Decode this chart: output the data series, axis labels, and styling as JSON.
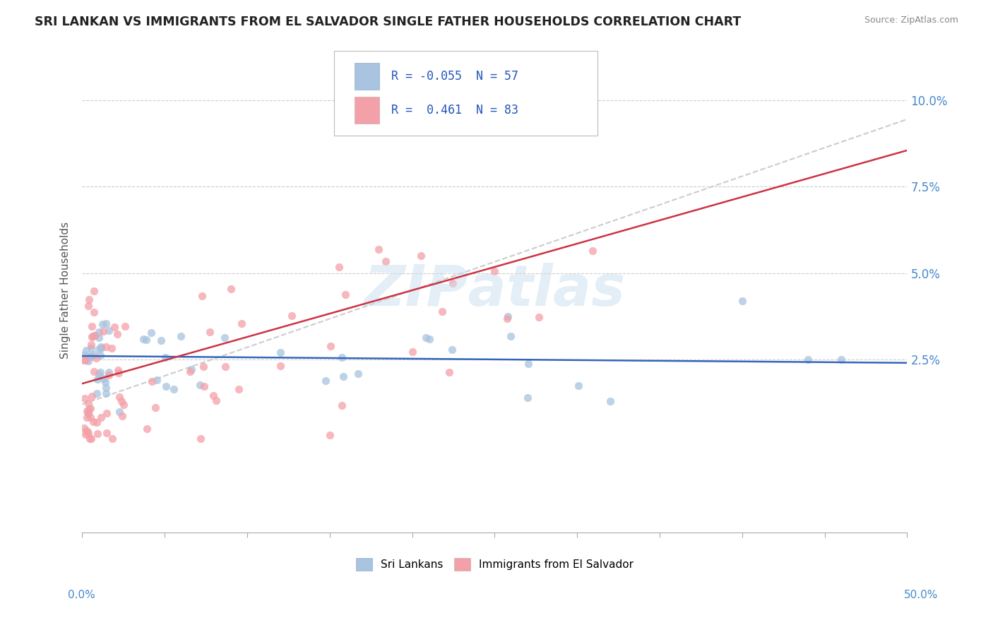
{
  "title": "SRI LANKAN VS IMMIGRANTS FROM EL SALVADOR SINGLE FATHER HOUSEHOLDS CORRELATION CHART",
  "source": "Source: ZipAtlas.com",
  "ylabel": "Single Father Households",
  "yticks": [
    "2.5%",
    "5.0%",
    "7.5%",
    "10.0%"
  ],
  "ytick_vals": [
    0.025,
    0.05,
    0.075,
    0.1
  ],
  "xlim": [
    0.0,
    0.5
  ],
  "ylim": [
    -0.025,
    0.115
  ],
  "legend_sri": "Sri Lankans",
  "legend_sal": "Immigrants from El Salvador",
  "R_sri": "-0.055",
  "N_sri": "57",
  "R_sal": "0.461",
  "N_sal": "83",
  "sri_color": "#a8c4e0",
  "sal_color": "#f4a0a8",
  "sri_line_color": "#3366bb",
  "sal_line_color": "#cc3344",
  "gray_line_color": "#cccccc",
  "background_color": "#ffffff"
}
